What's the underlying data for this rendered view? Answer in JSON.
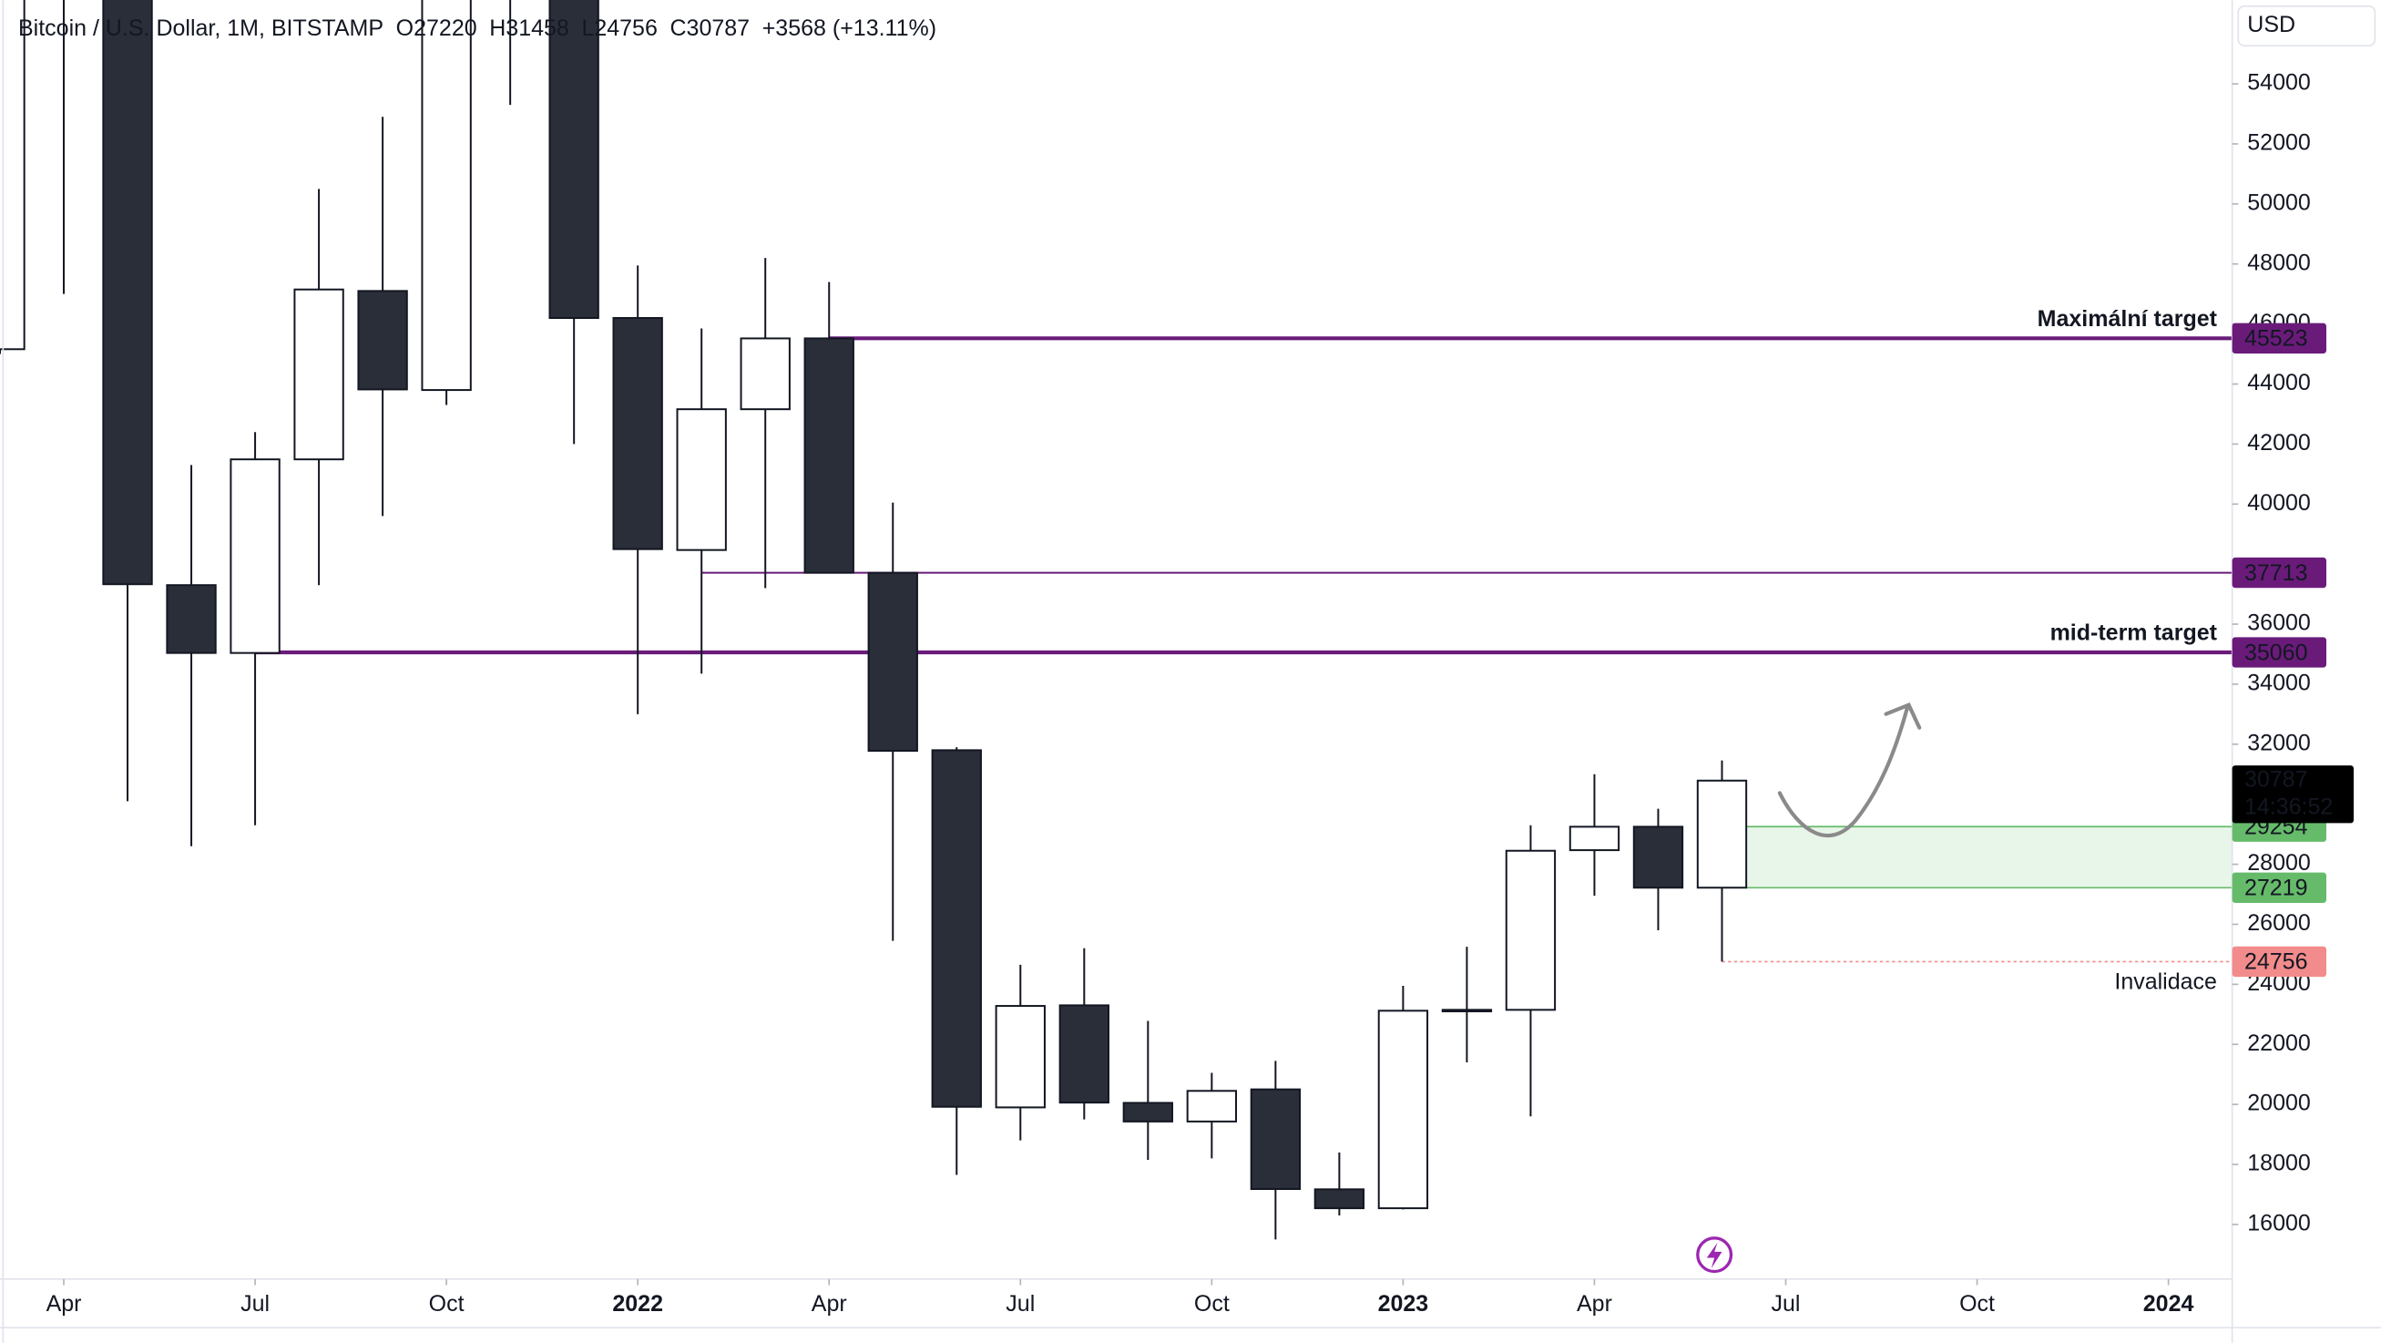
{
  "chart_data": {
    "type": "candlestick",
    "header": {
      "symbol": "Bitcoin / U.S. Dollar, 1M, BITSTAMP",
      "open": "O27220",
      "high": "H31458",
      "low": "L24756",
      "close": "C30787",
      "change": "+3568 (+13.11%)"
    },
    "currency": "USD",
    "up_color": "#ffffff",
    "down_color": "#2a2e39",
    "x": [
      "2021-03",
      "2021-04",
      "2021-05",
      "2021-06",
      "2021-07",
      "2021-08",
      "2021-09",
      "2021-10",
      "2021-11",
      "2021-12",
      "2022-01",
      "2022-02",
      "2022-03",
      "2022-04",
      "2022-05",
      "2022-06",
      "2022-07",
      "2022-08",
      "2022-09",
      "2022-10",
      "2022-11",
      "2022-12",
      "2023-01",
      "2023-02",
      "2023-03",
      "2023-04",
      "2023-05",
      "2023-06"
    ],
    "open": [
      45160,
      58800,
      57700,
      37300,
      35040,
      41490,
      47100,
      43800,
      61300,
      57000,
      46200,
      38470,
      43160,
      45520,
      37710,
      31800,
      19900,
      23300,
      20050,
      19430,
      20500,
      17170,
      16540,
      23120,
      23150,
      28470,
      29250,
      27220
    ],
    "high": [
      61788,
      64900,
      59500,
      41300,
      42400,
      50500,
      52900,
      67000,
      69000,
      59000,
      47950,
      45850,
      48200,
      47400,
      40050,
      31900,
      24650,
      25200,
      22780,
      21050,
      21450,
      18400,
      23950,
      25250,
      29300,
      31000,
      29850,
      31458
    ],
    "low": [
      45000,
      47000,
      30100,
      28600,
      29300,
      37300,
      39600,
      43300,
      53300,
      42000,
      33000,
      34350,
      37200,
      37700,
      25450,
      17650,
      18800,
      19500,
      18150,
      18200,
      15500,
      16300,
      16500,
      21400,
      19600,
      26950,
      25800,
      24756
    ],
    "close": [
      58800,
      57700,
      37330,
      35040,
      41490,
      47150,
      43820,
      61300,
      57000,
      46200,
      38500,
      43160,
      45520,
      37713,
      31780,
      19920,
      23280,
      20060,
      19430,
      20450,
      17180,
      16540,
      23120,
      23150,
      28450,
      29250,
      27220,
      30787
    ],
    "xlim": [
      "2021-03",
      "2024-02"
    ],
    "xticks": [
      {
        "value": "2021-04",
        "label": "Apr"
      },
      {
        "value": "2021-07",
        "label": "Jul"
      },
      {
        "value": "2021-10",
        "label": "Oct"
      },
      {
        "value": "2022-01",
        "label": "2022"
      },
      {
        "value": "2022-04",
        "label": "Apr"
      },
      {
        "value": "2022-07",
        "label": "Jul"
      },
      {
        "value": "2022-10",
        "label": "Oct"
      },
      {
        "value": "2023-01",
        "label": "2023"
      },
      {
        "value": "2023-04",
        "label": "Apr"
      },
      {
        "value": "2023-07",
        "label": "Jul"
      },
      {
        "value": "2023-10",
        "label": "Oct"
      },
      {
        "value": "2024-01",
        "label": "2024"
      }
    ],
    "ylim": [
      14180,
      56790
    ],
    "yticks": [
      16000,
      18000,
      20000,
      22000,
      24000,
      26000,
      28000,
      32000,
      34000,
      36000,
      40000,
      42000,
      44000,
      46000,
      48000,
      50000,
      52000,
      54000
    ],
    "levels": [
      {
        "value": 45523,
        "label": "Maximální target",
        "from": "2022-04",
        "color": "#6a1b7a"
      },
      {
        "value": 37713,
        "from": "2022-02",
        "color": "#6a1b7a"
      },
      {
        "value": 35060,
        "label": "mid-term target",
        "from": "2021-07",
        "color": "#6a1b7a"
      }
    ],
    "zone": {
      "top": 29254,
      "bottom": 27219,
      "from": "2023-06",
      "color": "#66bb6a"
    },
    "invalidation": {
      "value": 24756,
      "label": "Invalidace",
      "from": "2023-06",
      "color": "#f28b8b"
    },
    "countdown": "14:36:52"
  }
}
